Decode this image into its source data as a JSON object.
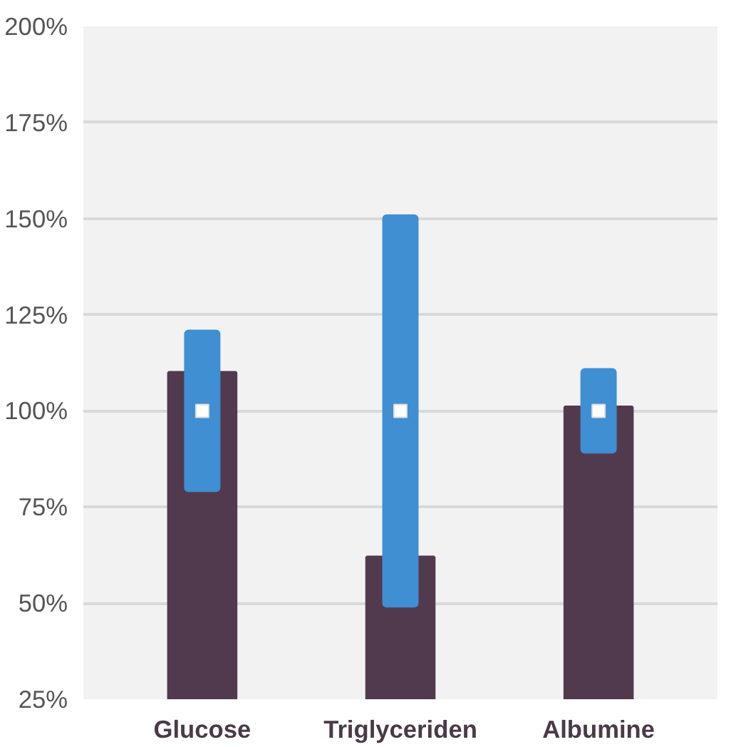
{
  "chart_data": {
    "type": "bar",
    "categories": [
      "Glucose",
      "Triglyceriden",
      "Albumine"
    ],
    "series": [
      {
        "color": "#523a4e",
        "values": [
          110,
          62,
          101
        ]
      },
      {
        "type": "bar",
        "color": "#3f8fd2",
        "values": [
          40,
          100,
          20
        ],
        "base": [
          80,
          50,
          90
        ]
      },
      {
        "type": "scatter",
        "color": "#ffffff",
        "values": [
          100,
          100,
          100
        ],
        "x": [
          "Glucose",
          "Triglyceriden",
          "Albumine"
        ]
      }
    ],
    "ylim": [
      25,
      200
    ],
    "yticks": [
      {
        "value": 25,
        "label": "25%"
      },
      {
        "value": 50,
        "label": "50%"
      },
      {
        "value": 75,
        "label": "75%"
      },
      {
        "value": 100,
        "label": "100%"
      },
      {
        "value": 125,
        "label": "125%"
      },
      {
        "value": 150,
        "label": "150%"
      },
      {
        "value": 175,
        "label": "175%"
      },
      {
        "value": 200,
        "label": "200%"
      }
    ],
    "grid": "y",
    "marker": "square"
  }
}
